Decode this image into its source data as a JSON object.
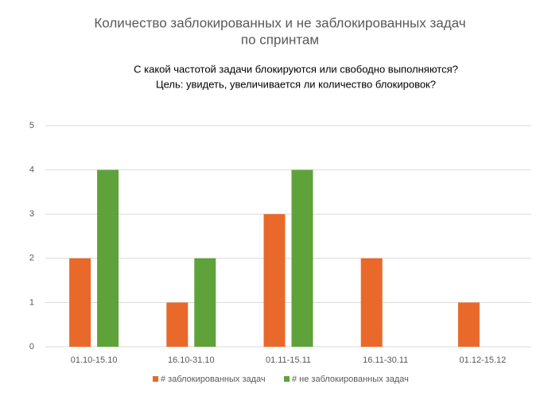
{
  "chart_data": {
    "type": "bar",
    "title": [
      "Количество заблокированных и не заблокированных задач",
      "по спринтам"
    ],
    "subtitle": [
      "С какой частотой задачи блокируются или свободно выполняются?",
      "Цель: увидеть, увеличивается ли количество блокировок?"
    ],
    "categories": [
      "01.10-15.10",
      "16.10-31.10",
      "01.11-15.11",
      "16.11-30.11",
      "01.12-15.12"
    ],
    "series": [
      {
        "name": "# заблокированных задач",
        "color": "#e8692a",
        "values": [
          2,
          1,
          3,
          2,
          1
        ]
      },
      {
        "name": "# не заблокированных задач",
        "color": "#5fa23a",
        "values": [
          4,
          2,
          4,
          0,
          0
        ]
      }
    ],
    "ylim": [
      0,
      5
    ],
    "yticks": [
      0,
      1,
      2,
      3,
      4,
      5
    ],
    "grid": true,
    "legend": "bottom"
  }
}
